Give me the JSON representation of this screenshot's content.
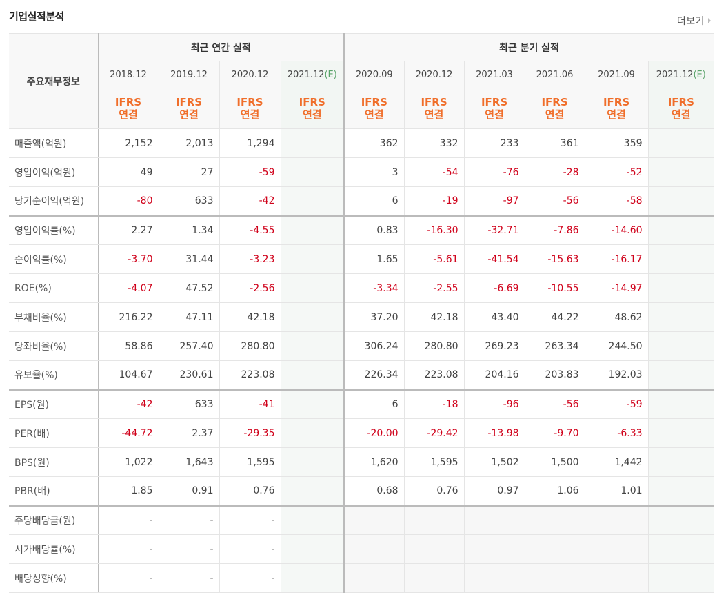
{
  "header": {
    "title": "기업실적분석",
    "more_label": "더보기"
  },
  "table": {
    "row_header_label": "주요재무정보",
    "annual_group_label": "최근 연간 실적",
    "quarter_group_label": "최근 분기 실적",
    "annual_periods": [
      {
        "date": "2018.12",
        "estimate": "",
        "ifrs_line1": "IFRS",
        "ifrs_line2": "연결"
      },
      {
        "date": "2019.12",
        "estimate": "",
        "ifrs_line1": "IFRS",
        "ifrs_line2": "연결"
      },
      {
        "date": "2020.12",
        "estimate": "",
        "ifrs_line1": "IFRS",
        "ifrs_line2": "연결"
      },
      {
        "date": "2021.12",
        "estimate": "(E)",
        "ifrs_line1": "IFRS",
        "ifrs_line2": "연결"
      }
    ],
    "quarter_periods": [
      {
        "date": "2020.09",
        "estimate": "",
        "ifrs_line1": "IFRS",
        "ifrs_line2": "연결"
      },
      {
        "date": "2020.12",
        "estimate": "",
        "ifrs_line1": "IFRS",
        "ifrs_line2": "연결"
      },
      {
        "date": "2021.03",
        "estimate": "",
        "ifrs_line1": "IFRS",
        "ifrs_line2": "연결"
      },
      {
        "date": "2021.06",
        "estimate": "",
        "ifrs_line1": "IFRS",
        "ifrs_line2": "연결"
      },
      {
        "date": "2021.09",
        "estimate": "",
        "ifrs_line1": "IFRS",
        "ifrs_line2": "연결"
      },
      {
        "date": "2021.12",
        "estimate": "(E)",
        "ifrs_line1": "IFRS",
        "ifrs_line2": "연결"
      }
    ],
    "rows": [
      {
        "label": "매출액(억원)",
        "annual": [
          "2,152",
          "2,013",
          "1,294",
          ""
        ],
        "quarter": [
          "362",
          "332",
          "233",
          "361",
          "359",
          ""
        ]
      },
      {
        "label": "영업이익(억원)",
        "annual": [
          "49",
          "27",
          "-59",
          ""
        ],
        "quarter": [
          "3",
          "-54",
          "-76",
          "-28",
          "-52",
          ""
        ]
      },
      {
        "label": "당기순이익(억원)",
        "annual": [
          "-80",
          "633",
          "-42",
          ""
        ],
        "quarter": [
          "6",
          "-19",
          "-97",
          "-56",
          "-58",
          ""
        ]
      },
      {
        "label": "영업이익률(%)",
        "annual": [
          "2.27",
          "1.34",
          "-4.55",
          ""
        ],
        "quarter": [
          "0.83",
          "-16.30",
          "-32.71",
          "-7.86",
          "-14.60",
          ""
        ]
      },
      {
        "label": "순이익률(%)",
        "annual": [
          "-3.70",
          "31.44",
          "-3.23",
          ""
        ],
        "quarter": [
          "1.65",
          "-5.61",
          "-41.54",
          "-15.63",
          "-16.17",
          ""
        ]
      },
      {
        "label": "ROE(%)",
        "annual": [
          "-4.07",
          "47.52",
          "-2.56",
          ""
        ],
        "quarter": [
          "-3.34",
          "-2.55",
          "-6.69",
          "-10.55",
          "-14.97",
          ""
        ]
      },
      {
        "label": "부채비율(%)",
        "annual": [
          "216.22",
          "47.11",
          "42.18",
          ""
        ],
        "quarter": [
          "37.20",
          "42.18",
          "43.40",
          "44.22",
          "48.62",
          ""
        ]
      },
      {
        "label": "당좌비율(%)",
        "annual": [
          "58.86",
          "257.40",
          "280.80",
          ""
        ],
        "quarter": [
          "306.24",
          "280.80",
          "269.23",
          "263.34",
          "244.50",
          ""
        ]
      },
      {
        "label": "유보율(%)",
        "annual": [
          "104.67",
          "230.61",
          "223.08",
          ""
        ],
        "quarter": [
          "226.34",
          "223.08",
          "204.16",
          "203.83",
          "192.03",
          ""
        ]
      },
      {
        "label": "EPS(원)",
        "annual": [
          "-42",
          "633",
          "-41",
          ""
        ],
        "quarter": [
          "6",
          "-18",
          "-96",
          "-56",
          "-59",
          ""
        ]
      },
      {
        "label": "PER(배)",
        "annual": [
          "-44.72",
          "2.37",
          "-29.35",
          ""
        ],
        "quarter": [
          "-20.00",
          "-29.42",
          "-13.98",
          "-9.70",
          "-6.33",
          ""
        ]
      },
      {
        "label": "BPS(원)",
        "annual": [
          "1,022",
          "1,643",
          "1,595",
          ""
        ],
        "quarter": [
          "1,620",
          "1,595",
          "1,502",
          "1,500",
          "1,442",
          ""
        ]
      },
      {
        "label": "PBR(배)",
        "annual": [
          "1.85",
          "0.91",
          "0.76",
          ""
        ],
        "quarter": [
          "0.68",
          "0.76",
          "0.97",
          "1.06",
          "1.01",
          ""
        ]
      },
      {
        "label": "주당배당금(원)",
        "annual": [
          "-",
          "-",
          "-",
          ""
        ],
        "quarter": [
          "",
          "",
          "",
          "",
          "",
          ""
        ]
      },
      {
        "label": "시가배당률(%)",
        "annual": [
          "-",
          "-",
          "-",
          ""
        ],
        "quarter": [
          "",
          "",
          "",
          "",
          "",
          ""
        ]
      },
      {
        "label": "배당성향(%)",
        "annual": [
          "-",
          "-",
          "-",
          ""
        ],
        "quarter": [
          "",
          "",
          "",
          "",
          "",
          ""
        ]
      }
    ],
    "group_starts": [
      3,
      9,
      13
    ],
    "colors": {
      "negative": "#d0021b",
      "ifrs": "#f06e2a",
      "estimate_tag": "#5aa36a"
    }
  }
}
